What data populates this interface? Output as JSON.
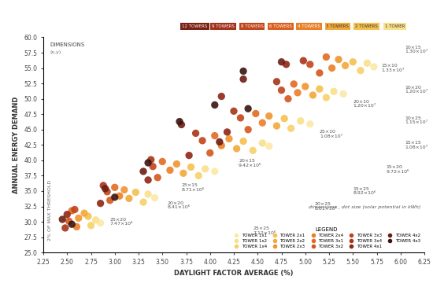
{
  "chart_data": {
    "type": "scatter",
    "x_label": "DAYLIGHT FACTOR AVERAGE (%)",
    "y_label": "ANNUAL ENERGY DEMAND",
    "xlim": [
      2.25,
      6.25
    ],
    "ylim": [
      25,
      60
    ],
    "xticks": [
      2.25,
      {
        "value": 2.5,
        "label": "2.50"
      },
      2.75,
      {
        "value": 3.0,
        "label": "3.00"
      },
      3.25,
      {
        "value": 3.5,
        "label": "3.50"
      },
      3.75,
      {
        "value": 4.0,
        "label": "4.00"
      },
      4.25,
      {
        "value": 4.5,
        "label": "4.50"
      },
      4.75,
      {
        "value": 5.0,
        "label": "5.00"
      },
      5.25,
      {
        "value": 5.5,
        "label": "5.50"
      },
      5.75,
      {
        "value": 6.0,
        "label": "6.00"
      },
      6.25
    ],
    "yticks": [
      {
        "value": 25,
        "label": "25.0"
      },
      27.5,
      {
        "value": 30,
        "label": "30.0"
      },
      32.5,
      {
        "value": 35,
        "label": "35.0"
      },
      37.5,
      {
        "value": 40,
        "label": "40.0"
      },
      42.5,
      {
        "value": 45,
        "label": "45.0"
      },
      47.5,
      {
        "value": 50,
        "label": "50.0"
      },
      52.5,
      {
        "value": 55,
        "label": "55.0"
      },
      57.5,
      {
        "value": 60,
        "label": "60.0"
      }
    ],
    "grid": false,
    "legend": "lower right",
    "marker": "o",
    "legend_title": "LEGEND",
    "legend_caption": "dimensions , dot size (solar potential in kWh)",
    "threshold_label": "2% OF MAX THRESHOLD",
    "dimensions_label": "DIMENSIONS",
    "dimensions_axes": "(x,y)",
    "tower_counts": [
      {
        "label": "12 TOWERS",
        "color": "#7a1f14"
      },
      {
        "label": "9 TOWERS",
        "color": "#a3311a"
      },
      {
        "label": "8 TOWERS",
        "color": "#c1441a"
      },
      {
        "label": "6 TOWERS",
        "color": "#d9601e"
      },
      {
        "label": "4 TOWERS",
        "color": "#ea7f27"
      },
      {
        "label": "3 TOWERS",
        "color": "#f2a93b"
      },
      {
        "label": "2 TOWERS",
        "color": "#f5c04e"
      },
      {
        "label": "1 TOWER",
        "color": "#f9e08a"
      }
    ],
    "annotations": [
      {
        "label": "15×10",
        "value": "1.33×10⁷",
        "x": 5.8,
        "y": 55.0
      },
      {
        "label": "10×15",
        "value": "1.30×10⁷",
        "x": 6.05,
        "y": 58.0
      },
      {
        "label": "10×20",
        "value": "1.20×10⁷",
        "x": 6.05,
        "y": 51.5
      },
      {
        "label": "20×10",
        "value": "1.20×10⁷",
        "x": 5.5,
        "y": 49.2
      },
      {
        "label": "10×25",
        "value": "1.15×10⁷",
        "x": 6.05,
        "y": 46.5
      },
      {
        "label": "25×10",
        "value": "1.08×10⁷",
        "x": 5.15,
        "y": 44.3
      },
      {
        "label": "15×15",
        "value": "1.08×10⁷",
        "x": 6.05,
        "y": 42.5
      },
      {
        "label": "20×15",
        "value": "9.42×10⁶",
        "x": 4.3,
        "y": 39.5
      },
      {
        "label": "15×20",
        "value": "9.72×10⁶",
        "x": 5.85,
        "y": 38.5
      },
      {
        "label": "25×15",
        "value": "8.71×10⁶",
        "x": 3.7,
        "y": 35.6
      },
      {
        "label": "15×25",
        "value": "8.92×10⁶",
        "x": 5.5,
        "y": 35.0
      },
      {
        "label": "20×20",
        "value": "8.41×10⁶",
        "x": 3.55,
        "y": 32.7
      },
      {
        "label": "20×25",
        "value": "8.01×10⁶",
        "x": 5.1,
        "y": 32.5
      },
      {
        "label": "25×20",
        "value": "7.47×10⁶",
        "x": 2.95,
        "y": 30.0
      },
      {
        "label": "25×25",
        "value": "7.12×10⁶",
        "x": 4.45,
        "y": 28.5
      }
    ],
    "series": [
      {
        "name": "TOWER 1x1",
        "color": "#fbe9a8",
        "x": [
          2.85,
          3.42,
          4.05,
          4.62,
          5.05,
          5.4,
          5.72
        ],
        "values": [
          29.8,
          33.9,
          38.2,
          42.3,
          45.9,
          50.8,
          55.2
        ]
      },
      {
        "name": "TOWER 1x2",
        "color": "#f9e08a",
        "x": [
          2.8,
          3.35,
          3.95,
          4.55,
          4.95,
          5.3,
          5.65
        ],
        "values": [
          30.3,
          34.5,
          38.6,
          42.8,
          46.4,
          51.2,
          55.8
        ]
      },
      {
        "name": "TOWER 1x4",
        "color": "#f7d16b",
        "x": [
          2.75,
          3.3,
          3.88,
          4.45,
          4.85,
          5.22,
          5.58
        ],
        "values": [
          29.4,
          33.2,
          37.5,
          41.6,
          45.2,
          50.2,
          54.6
        ]
      },
      {
        "name": "TOWER 2x1",
        "color": "#f5c04e",
        "x": [
          2.72,
          3.22,
          3.8,
          4.35,
          4.78,
          5.15,
          5.5
        ],
        "values": [
          30.9,
          34.8,
          38.9,
          43.1,
          46.8,
          51.6,
          56.0
        ]
      },
      {
        "name": "TOWER 2x2",
        "color": "#f2a93b",
        "x": [
          2.68,
          3.15,
          3.72,
          4.28,
          4.7,
          5.08,
          5.42
        ],
        "values": [
          31.4,
          33.8,
          37.9,
          41.9,
          45.6,
          50.6,
          55.4
        ]
      },
      {
        "name": "TOWER 2x3",
        "color": "#ef9530",
        "x": [
          2.62,
          3.1,
          3.65,
          4.2,
          4.62,
          5.0,
          5.35
        ],
        "values": [
          30.6,
          35.2,
          39.4,
          43.5,
          47.2,
          52.0,
          56.4
        ]
      },
      {
        "name": "TOWER 2x4",
        "color": "#ea7f27",
        "x": [
          2.6,
          3.05,
          3.58,
          4.12,
          4.55,
          4.92,
          5.28
        ],
        "values": [
          29.2,
          34.2,
          38.4,
          42.4,
          46.1,
          51.0,
          55.0
        ]
      },
      {
        "name": "TOWER 3x1",
        "color": "#e36a20",
        "x": [
          2.55,
          3.0,
          3.5,
          4.05,
          4.48,
          4.88,
          5.22
        ],
        "values": [
          31.8,
          35.6,
          39.8,
          44.0,
          47.6,
          52.4,
          56.8
        ]
      },
      {
        "name": "TOWER 3x2",
        "color": "#d5561c",
        "x": [
          2.52,
          2.95,
          3.45,
          4.0,
          4.4,
          4.82,
          5.15
        ],
        "values": [
          30.1,
          33.5,
          37.2,
          41.2,
          45.0,
          50.0,
          54.2
        ]
      },
      {
        "name": "TOWER 3x3",
        "color": "#c1441a",
        "x": [
          2.58,
          2.92,
          3.4,
          3.92,
          4.32,
          4.75,
          5.05
        ],
        "values": [
          32.0,
          34.9,
          39.0,
          43.2,
          46.9,
          51.4,
          55.6
        ]
      },
      {
        "name": "TOWER 3x4",
        "color": "#a83418",
        "x": [
          2.48,
          2.88,
          3.38,
          3.85,
          4.25,
          4.7,
          4.98
        ],
        "values": [
          29.0,
          35.9,
          40.1,
          44.4,
          48.0,
          52.8,
          56.2
        ]
      },
      {
        "name": "TOWER 4x1",
        "color": "#8e2716",
        "x": [
          2.5,
          2.85,
          3.35,
          3.78,
          4.18,
          4.8,
          4.12
        ],
        "values": [
          31.2,
          33.0,
          36.8,
          40.8,
          44.6,
          55.6,
          50.4
        ]
      },
      {
        "name": "TOWER 4x2",
        "color": "#6e1d13",
        "x": [
          2.45,
          2.9,
          3.3,
          3.7,
          4.1,
          4.75,
          4.35
        ],
        "values": [
          30.4,
          35.4,
          38.2,
          45.8,
          43.0,
          56.0,
          53.2
        ]
      },
      {
        "name": "TOWER 4x3",
        "color": "#3a1410",
        "x": [
          2.55,
          3.0,
          3.35,
          3.68,
          4.05,
          4.35,
          4.4
        ],
        "values": [
          29.6,
          34.0,
          39.6,
          46.3,
          49.0,
          54.5,
          48.4
        ]
      }
    ]
  }
}
